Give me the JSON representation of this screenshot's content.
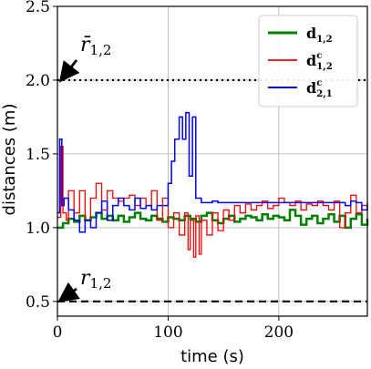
{
  "chart_data": {
    "type": "line",
    "xlabel": "time (s)",
    "ylabel": "distances (m)",
    "xlim": [
      0,
      280
    ],
    "ylim": [
      0.4,
      2.5
    ],
    "xticks": [
      0,
      100,
      200
    ],
    "yticks": [
      0.5,
      1.0,
      1.5,
      2.0,
      2.5
    ],
    "xtick_labels": [
      "0",
      "100",
      "200"
    ],
    "ytick_labels": [
      "0.5",
      "1.0",
      "1.5",
      "2.0",
      "2.5"
    ],
    "grid": true,
    "legend_position": "top-right",
    "reference_lines": [
      {
        "label": "r̄",
        "subscript": "1,2",
        "y": 2.0,
        "style": "dotted",
        "color": "#000000"
      },
      {
        "label": "r",
        "subscript": "1,2",
        "y": 0.5,
        "style": "dashed",
        "color": "#000000"
      }
    ],
    "series": [
      {
        "name": "d",
        "superscript": "",
        "subscript": "1,2",
        "color": "#008000",
        "linewidth": 2.5,
        "x": [
          0,
          5,
          10,
          15,
          20,
          25,
          30,
          35,
          40,
          45,
          50,
          55,
          60,
          65,
          70,
          75,
          80,
          85,
          90,
          95,
          100,
          105,
          110,
          115,
          120,
          125,
          130,
          135,
          140,
          145,
          150,
          155,
          160,
          165,
          170,
          175,
          180,
          185,
          190,
          195,
          200,
          205,
          210,
          215,
          220,
          225,
          230,
          235,
          240,
          245,
          250,
          255,
          260,
          265,
          270,
          275,
          280
        ],
        "values": [
          1.0,
          1.03,
          1.06,
          1.04,
          1.08,
          1.05,
          1.07,
          1.1,
          1.06,
          1.08,
          1.05,
          1.08,
          1.04,
          1.07,
          1.1,
          1.06,
          1.05,
          1.08,
          1.06,
          1.04,
          1.07,
          1.06,
          1.05,
          1.08,
          1.06,
          1.04,
          1.08,
          1.1,
          1.05,
          1.03,
          1.06,
          1.08,
          1.04,
          1.06,
          1.08,
          1.07,
          1.05,
          1.09,
          1.06,
          1.08,
          1.07,
          1.05,
          1.12,
          1.08,
          1.02,
          1.06,
          1.08,
          1.03,
          1.06,
          1.09,
          1.04,
          1.08,
          1.0,
          1.06,
          1.09,
          1.02,
          1.06
        ]
      },
      {
        "name": "d",
        "superscript": "c",
        "subscript": "1,2",
        "color": "#ff0000",
        "linewidth": 1.3,
        "x": [
          0,
          3,
          5,
          8,
          10,
          15,
          20,
          25,
          30,
          35,
          40,
          45,
          50,
          55,
          60,
          65,
          70,
          75,
          80,
          85,
          90,
          95,
          100,
          105,
          110,
          115,
          118,
          120,
          123,
          125,
          128,
          130,
          135,
          140,
          145,
          150,
          155,
          160,
          165,
          170,
          175,
          180,
          185,
          190,
          195,
          200,
          205,
          210,
          215,
          220,
          225,
          230,
          235,
          240,
          245,
          250,
          255,
          260,
          265,
          270,
          275,
          280
        ],
        "values": [
          1.07,
          1.55,
          1.1,
          1.05,
          1.25,
          1.1,
          1.25,
          1.05,
          1.2,
          1.3,
          1.12,
          1.25,
          1.2,
          1.18,
          1.2,
          1.22,
          1.15,
          1.2,
          1.15,
          1.25,
          1.05,
          1.2,
          1.0,
          1.1,
          0.95,
          1.1,
          0.85,
          1.05,
          0.8,
          1.08,
          0.82,
          1.05,
          0.95,
          1.1,
          0.98,
          1.12,
          1.05,
          1.15,
          1.1,
          1.16,
          1.12,
          1.15,
          1.18,
          1.13,
          1.15,
          1.2,
          1.17,
          1.15,
          1.18,
          1.12,
          1.16,
          1.15,
          1.18,
          1.15,
          1.12,
          1.18,
          1.0,
          1.1,
          1.22,
          1.1,
          1.15,
          1.12
        ]
      },
      {
        "name": "d",
        "superscript": "c",
        "subscript": "2,1",
        "color": "#0000ff",
        "linewidth": 1.5,
        "x": [
          0,
          2,
          4,
          6,
          10,
          15,
          20,
          25,
          30,
          35,
          40,
          45,
          50,
          55,
          60,
          65,
          70,
          75,
          80,
          85,
          90,
          95,
          100,
          103,
          106,
          110,
          113,
          116,
          119,
          122,
          125,
          130,
          135,
          140,
          145,
          150,
          155,
          160,
          165,
          170,
          175,
          180,
          185,
          190,
          195,
          200,
          205,
          210,
          215,
          220,
          225,
          230,
          235,
          240,
          245,
          250,
          255,
          260,
          265,
          270,
          275,
          280
        ],
        "values": [
          1.1,
          1.6,
          1.15,
          1.2,
          1.12,
          1.05,
          0.97,
          1.05,
          1.0,
          1.1,
          1.18,
          1.05,
          1.15,
          1.2,
          1.15,
          1.12,
          1.2,
          1.13,
          1.15,
          1.12,
          1.15,
          1.15,
          1.3,
          1.45,
          1.6,
          1.75,
          1.6,
          1.78,
          1.35,
          1.75,
          1.2,
          1.17,
          1.17,
          1.18,
          1.17,
          1.17,
          1.17,
          1.17,
          1.17,
          1.17,
          1.17,
          1.17,
          1.17,
          1.17,
          1.17,
          1.17,
          1.17,
          1.17,
          1.17,
          1.17,
          1.17,
          1.17,
          1.17,
          1.17,
          1.17,
          1.17,
          1.17,
          1.15,
          1.18,
          1.17,
          1.12,
          1.17
        ]
      }
    ]
  }
}
